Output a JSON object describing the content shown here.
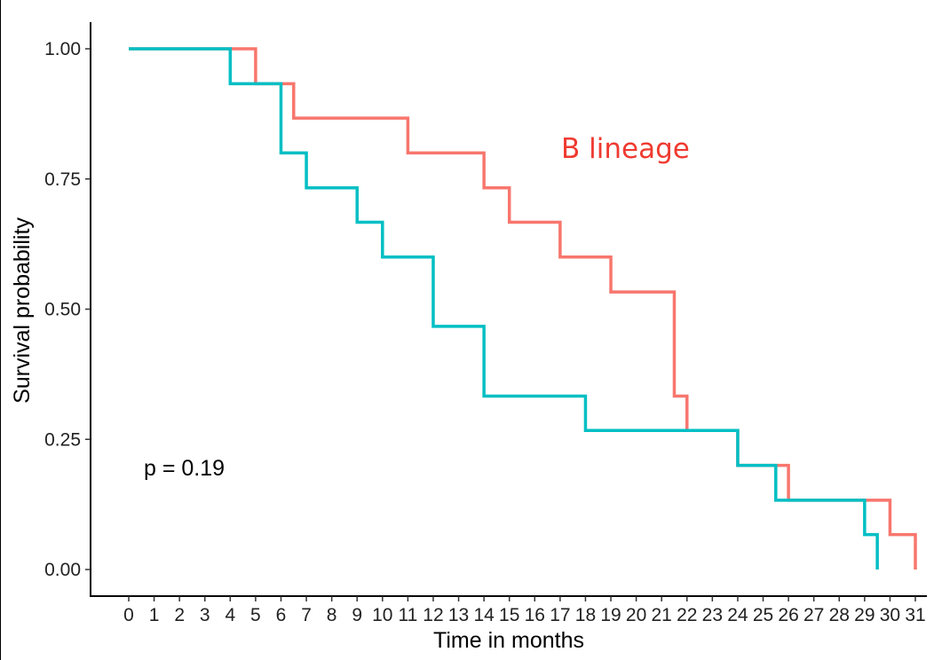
{
  "chart_data": {
    "type": "line",
    "step": true,
    "xlabel": "Time in months",
    "ylabel": "Survival probability",
    "xlim": [
      0,
      31
    ],
    "ylim": [
      0,
      1
    ],
    "x_ticks": [
      "0",
      "1",
      "2",
      "3",
      "4",
      "5",
      "6",
      "7",
      "8",
      "9",
      "10",
      "11",
      "12",
      "13",
      "14",
      "15",
      "16",
      "17",
      "18",
      "19",
      "20",
      "21",
      "22",
      "23",
      "24",
      "25",
      "26",
      "27",
      "28",
      "29",
      "30",
      "31"
    ],
    "y_ticks": [
      "0.00",
      "0.25",
      "0.50",
      "0.75",
      "1.00"
    ],
    "grid": false,
    "legend": "none",
    "annotations": {
      "p_value": "p = 0.19",
      "series_label": "B lineage"
    },
    "series": [
      {
        "name": "B lineage",
        "color": "#F8766D",
        "points": [
          [
            0,
            1.0
          ],
          [
            5,
            0.933
          ],
          [
            6.5,
            0.867
          ],
          [
            11,
            0.8
          ],
          [
            14,
            0.733
          ],
          [
            15,
            0.667
          ],
          [
            17,
            0.6
          ],
          [
            19,
            0.533
          ],
          [
            21.5,
            0.333
          ],
          [
            22,
            0.267
          ],
          [
            24,
            0.2
          ],
          [
            26,
            0.133
          ],
          [
            30,
            0.067
          ],
          [
            31,
            0.0
          ]
        ]
      },
      {
        "color": "#00BFC4",
        "points": [
          [
            0,
            1.0
          ],
          [
            4,
            0.933
          ],
          [
            6,
            0.8
          ],
          [
            7,
            0.733
          ],
          [
            9,
            0.667
          ],
          [
            10,
            0.6
          ],
          [
            12,
            0.467
          ],
          [
            14,
            0.333
          ],
          [
            18,
            0.267
          ],
          [
            24,
            0.2
          ],
          [
            25.5,
            0.133
          ],
          [
            29,
            0.067
          ],
          [
            29.5,
            0.0
          ]
        ]
      }
    ]
  }
}
